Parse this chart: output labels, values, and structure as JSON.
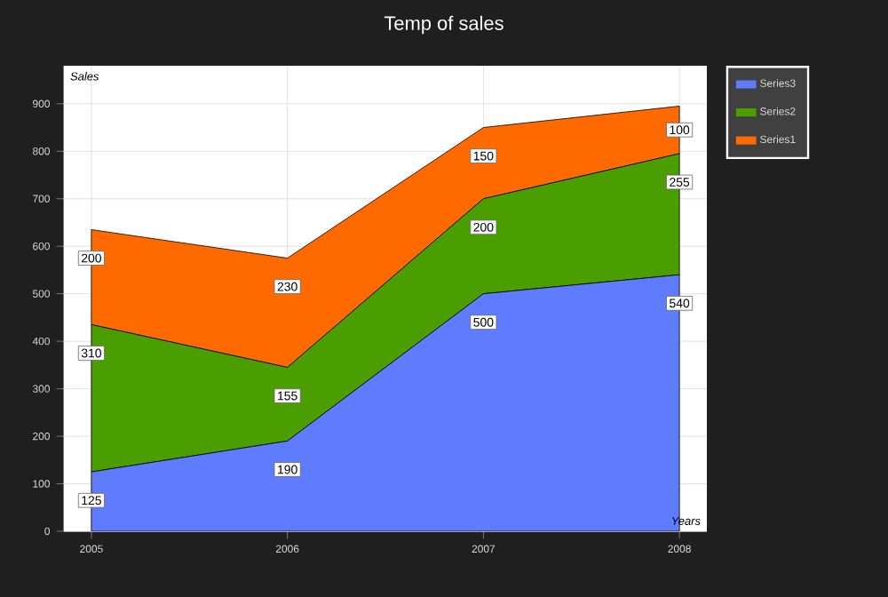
{
  "chart_data": {
    "type": "area",
    "title": "Temp of sales",
    "xlabel": "Years",
    "ylabel": "Sales",
    "categories": [
      "2005",
      "2006",
      "2007",
      "2008"
    ],
    "series": [
      {
        "name": "Series3",
        "color": "#5f7cff",
        "values": [
          125,
          190,
          500,
          540
        ]
      },
      {
        "name": "Series2",
        "color": "#4a9e00",
        "values": [
          310,
          155,
          200,
          255
        ]
      },
      {
        "name": "Series1",
        "color": "#ff6a00",
        "values": [
          200,
          230,
          150,
          100
        ]
      }
    ],
    "stacked": true,
    "ylim": [
      0,
      980
    ],
    "yticks": [
      0,
      100,
      200,
      300,
      400,
      500,
      600,
      700,
      800,
      900
    ],
    "grid": true,
    "legend": "top right",
    "data_labels": true
  }
}
